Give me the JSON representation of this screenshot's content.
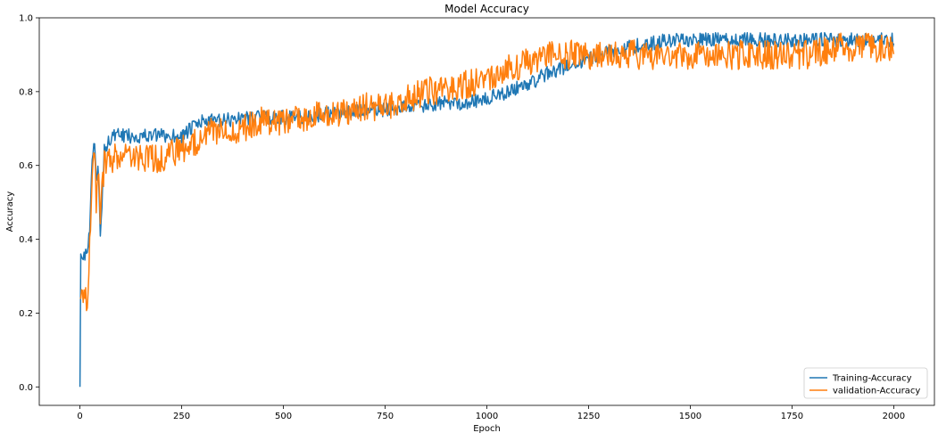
{
  "chart_data": {
    "type": "line",
    "title": "Model Accuracy",
    "xlabel": "Epoch",
    "ylabel": "Accuracy",
    "xlim": [
      -100,
      2100
    ],
    "ylim": [
      -0.05,
      1.0
    ],
    "x_ticks": [
      0,
      250,
      500,
      750,
      1000,
      1250,
      1500,
      1750,
      2000
    ],
    "x_tick_labels": [
      "0",
      "250",
      "500",
      "750",
      "1000",
      "1250",
      "1500",
      "1750",
      "2000"
    ],
    "y_ticks": [
      0.0,
      0.2,
      0.4,
      0.6,
      0.8,
      1.0
    ],
    "y_tick_labels": [
      "0.0",
      "0.2",
      "0.4",
      "0.6",
      "0.8",
      "1.0"
    ],
    "grid": false,
    "legend_position": "lower right",
    "series": [
      {
        "name": "Training-Accuracy",
        "color": "#1f77b4",
        "noise_amplitude": 0.02,
        "x": [
          0,
          1,
          20,
          25,
          30,
          35,
          40,
          45,
          50,
          60,
          80,
          100,
          150,
          200,
          250,
          300,
          350,
          400,
          450,
          500,
          550,
          600,
          650,
          700,
          750,
          800,
          850,
          900,
          950,
          1000,
          1050,
          1100,
          1150,
          1200,
          1250,
          1300,
          1350,
          1400,
          1450,
          1500,
          1550,
          1600,
          1650,
          1700,
          1750,
          1800,
          1850,
          1900,
          1950,
          2000
        ],
        "y": [
          0.0,
          0.36,
          0.36,
          0.45,
          0.62,
          0.69,
          0.55,
          0.6,
          0.4,
          0.65,
          0.68,
          0.68,
          0.68,
          0.68,
          0.68,
          0.72,
          0.72,
          0.73,
          0.73,
          0.73,
          0.73,
          0.74,
          0.74,
          0.75,
          0.75,
          0.76,
          0.76,
          0.77,
          0.77,
          0.78,
          0.8,
          0.82,
          0.85,
          0.87,
          0.89,
          0.91,
          0.92,
          0.93,
          0.94,
          0.94,
          0.94,
          0.94,
          0.94,
          0.94,
          0.94,
          0.94,
          0.94,
          0.94,
          0.94,
          0.94
        ]
      },
      {
        "name": "validation-Accuracy",
        "color": "#ff7f0e",
        "noise_amplitude": 0.04,
        "x": [
          0,
          1,
          20,
          25,
          30,
          35,
          40,
          45,
          50,
          60,
          80,
          100,
          150,
          200,
          250,
          300,
          350,
          400,
          450,
          500,
          550,
          600,
          650,
          700,
          750,
          800,
          850,
          900,
          950,
          1000,
          1050,
          1100,
          1150,
          1200,
          1250,
          1300,
          1350,
          1400,
          1450,
          1500,
          1550,
          1600,
          1650,
          1700,
          1750,
          1800,
          1850,
          1900,
          1950,
          2000
        ],
        "y": [
          0.24,
          0.24,
          0.24,
          0.4,
          0.6,
          0.66,
          0.5,
          0.6,
          0.48,
          0.6,
          0.62,
          0.62,
          0.62,
          0.62,
          0.64,
          0.68,
          0.7,
          0.7,
          0.72,
          0.72,
          0.72,
          0.74,
          0.74,
          0.76,
          0.76,
          0.78,
          0.8,
          0.8,
          0.82,
          0.84,
          0.86,
          0.88,
          0.9,
          0.9,
          0.9,
          0.9,
          0.9,
          0.9,
          0.9,
          0.9,
          0.9,
          0.9,
          0.9,
          0.9,
          0.9,
          0.9,
          0.92,
          0.92,
          0.92,
          0.92
        ]
      }
    ]
  }
}
